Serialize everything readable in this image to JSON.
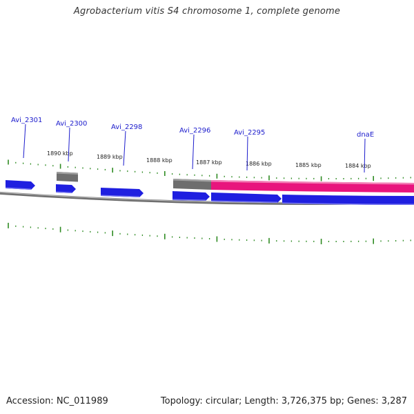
{
  "title": "Agrobacterium vitis S4 chromosome 1, complete genome",
  "footer": {
    "accession": "Accession: NC_011989",
    "summary": "Topology: circular; Length: 3,726,375 bp; Genes: 3,287"
  },
  "colors": {
    "cds": "#1f1fe0",
    "gene_gray": "#6e6e6e",
    "rna_pink": "#e8157d",
    "backbone": "#8c8c8c",
    "tick": "#2e8b22",
    "label": "#1a1acc"
  },
  "genes": [
    {
      "name": "Avi_2301"
    },
    {
      "name": "Avi_2300"
    },
    {
      "name": "Avi_2298"
    },
    {
      "name": "Avi_2296"
    },
    {
      "name": "Avi_2295"
    },
    {
      "name": "dnaE"
    }
  ],
  "scale_labels": [
    "1890 kbp",
    "1889 kbp",
    "1888 kbp",
    "1887 kbp",
    "1886 kbp",
    "1885 kbp",
    "1884 kbp"
  ]
}
